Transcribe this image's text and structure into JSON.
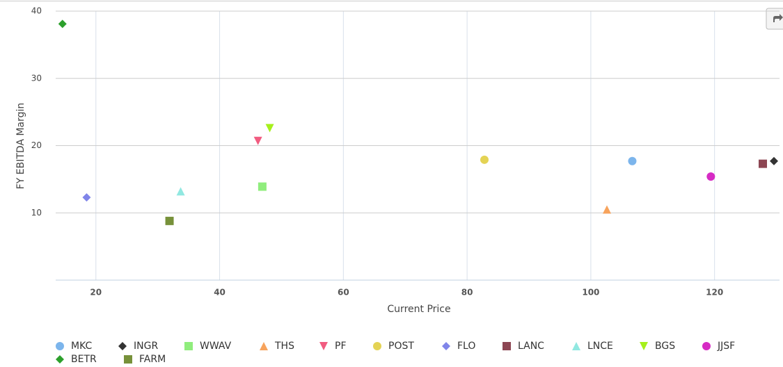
{
  "chart_data": {
    "type": "scatter",
    "x_label": "Current Price",
    "y_label": "FY EBITDA Margin",
    "xlim": [
      13.5,
      130.5
    ],
    "ylim": [
      0,
      40
    ],
    "xticks": [
      20,
      40,
      60,
      80,
      100,
      120
    ],
    "yticks": [
      10,
      20,
      30,
      40
    ],
    "grid": true,
    "series": [
      {
        "name": "MKC",
        "color": "#7cb5ec",
        "symbol": "circle",
        "x": [
          106.7
        ],
        "y": [
          17.7
        ]
      },
      {
        "name": "INGR",
        "color": "#333333",
        "symbol": "diamond",
        "x": [
          129.6
        ],
        "y": [
          17.7
        ]
      },
      {
        "name": "WWAV",
        "color": "#90ed7d",
        "symbol": "square",
        "x": [
          46.9
        ],
        "y": [
          13.9
        ]
      },
      {
        "name": "THS",
        "color": "#f7a35c",
        "symbol": "triangle",
        "x": [
          102.6
        ],
        "y": [
          10.5
        ]
      },
      {
        "name": "PF",
        "color": "#f15c80",
        "symbol": "triangle-down",
        "x": [
          46.2
        ],
        "y": [
          20.7
        ]
      },
      {
        "name": "POST",
        "color": "#e4d354",
        "symbol": "circle",
        "x": [
          82.8
        ],
        "y": [
          17.9
        ]
      },
      {
        "name": "FLO",
        "color": "#8085e9",
        "symbol": "diamond",
        "x": [
          18.5
        ],
        "y": [
          12.3
        ]
      },
      {
        "name": "LANC",
        "color": "#8d4653",
        "symbol": "square",
        "x": [
          127.8
        ],
        "y": [
          17.3
        ]
      },
      {
        "name": "LNCE",
        "color": "#91e8e1",
        "symbol": "triangle",
        "x": [
          33.7
        ],
        "y": [
          13.2
        ]
      },
      {
        "name": "BGS",
        "color": "#a6f01c",
        "symbol": "triangle-down",
        "x": [
          48.1
        ],
        "y": [
          22.6
        ]
      },
      {
        "name": "JJSF",
        "color": "#d62bc4",
        "symbol": "circle",
        "x": [
          119.4
        ],
        "y": [
          15.4
        ]
      },
      {
        "name": "BETR",
        "color": "#2ca02c",
        "symbol": "diamond",
        "x": [
          14.6
        ],
        "y": [
          38.1
        ]
      },
      {
        "name": "FARM",
        "color": "#77913a",
        "symbol": "square",
        "x": [
          31.9
        ],
        "y": [
          8.8
        ]
      }
    ]
  }
}
